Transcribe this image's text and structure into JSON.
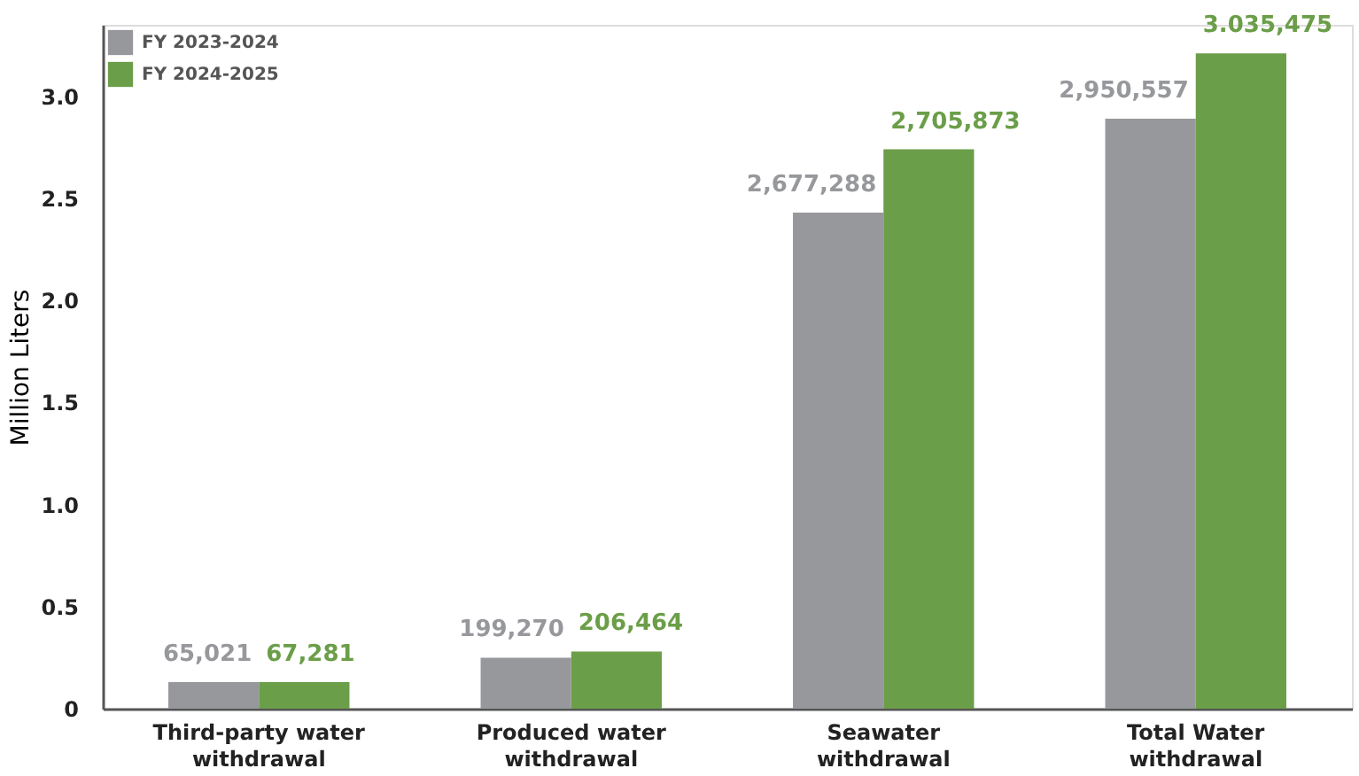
{
  "chart_data": {
    "type": "bar",
    "ylabel": "Million Liters",
    "categories": [
      "Third-party water\nwithdrawal",
      "Produced water\nwithdrawal",
      "Seawater\nwithdrawal",
      "Total Water\nwithdrawal"
    ],
    "series": [
      {
        "name": "FY 2023-2024",
        "color": "#97989c",
        "values": [
          0.13,
          0.25,
          2.43,
          2.89
        ]
      },
      {
        "name": "FY 2024-2025",
        "color": "#6b9e48",
        "values": [
          0.13,
          0.28,
          2.74,
          3.21
        ]
      }
    ],
    "annotations": [
      {
        "text": "65,021",
        "x": "Third-party water\nwithdrawal",
        "y": 0.13
      },
      {
        "text": "67,281",
        "x": "Third-party water\nwithdrawal",
        "y": 0.13
      },
      {
        "text": "199,270",
        "x": "Produced water\nwithdrawal",
        "y": 0.25
      },
      {
        "text": "206,464",
        "x": "Produced water\nwithdrawal",
        "y": 0.28
      },
      {
        "text": "2,677,288",
        "x": "Seawater\nwithdrawal",
        "y": 2.43
      },
      {
        "text": "2,705,873",
        "x": "Seawater\nwithdrawal",
        "y": 2.74
      },
      {
        "text": "2,950,557",
        "x": "Total Water\nwithdrawal",
        "y": 2.89
      },
      {
        "text": "3.035,475",
        "x": "Total Water\nwithdrawal",
        "y": 3.21
      }
    ],
    "ylim": [
      0,
      3.35
    ],
    "yticks": [
      0,
      {
        "value": 0.5,
        "label": "0.5"
      },
      {
        "value": 1,
        "label": "1.0"
      },
      {
        "value": 1.5,
        "label": "1.5"
      },
      {
        "value": 2,
        "label": "2.0"
      },
      {
        "value": 2.5,
        "label": "2.5"
      },
      {
        "value": 3,
        "label": "3.0"
      }
    ],
    "grid": false,
    "legend": "top left"
  }
}
